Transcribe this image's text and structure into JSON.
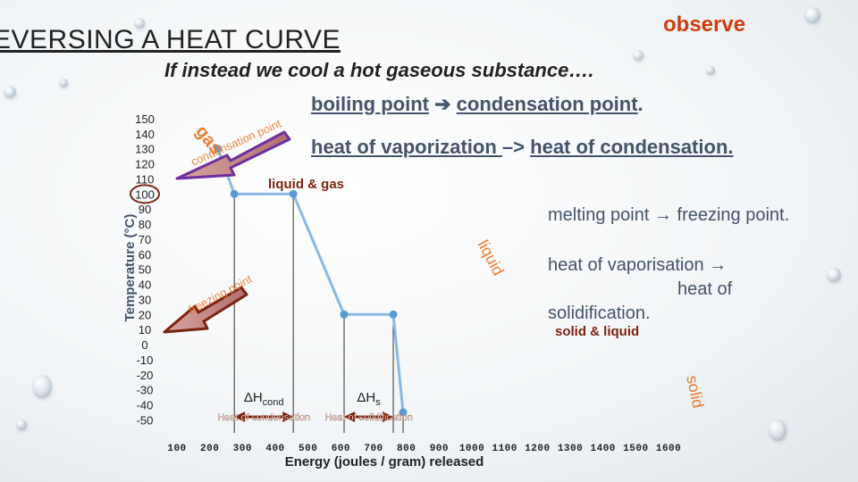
{
  "header": {
    "title": "EVERSING A HEAT CURVE",
    "observe_label": "observe",
    "subtitle": "If instead we cool a hot gaseous substance….",
    "boiling_line": {
      "from": "boiling point",
      "to": "condensation point",
      "end": "."
    },
    "heat_line": {
      "from": "heat of vaporization ",
      "arrow": "–>",
      "to": "heat of condensation",
      "end": "."
    },
    "melting_line": "melting point → freezing point.",
    "vaporisation_line": [
      "heat of vaporisation →",
      "heat of",
      "solidification."
    ]
  },
  "colors": {
    "curve": "#8ab8e4",
    "dot": "#5b9bd5",
    "arrow": "#7030a0",
    "arrow_fill": "#d8a4a0",
    "region_label": "#ed7d31",
    "bracket": "#7b2410",
    "text_dark": "#44546a"
  },
  "chart_data": {
    "type": "line",
    "ylabel": "Temperature (°C)",
    "xlabel": "Energy (joules / gram) released",
    "ylim": [
      -50,
      150
    ],
    "yticks": [
      150,
      140,
      130,
      120,
      110,
      100,
      90,
      80,
      70,
      60,
      50,
      40,
      30,
      20,
      10,
      0,
      -10,
      -20,
      -30,
      -40,
      -50
    ],
    "y_highlight": "100",
    "xticks": [
      "100",
      "200",
      "300",
      "400",
      "500",
      "600",
      "700",
      "800",
      "900",
      "1000",
      "1100",
      "1200",
      "1300",
      "1400",
      "1500",
      "1600"
    ],
    "series": [
      {
        "points": [
          {
            "x": 225,
            "y": 130
          },
          {
            "x": 275,
            "y": 100
          },
          {
            "x": 455,
            "y": 100
          },
          {
            "x": 610,
            "y": 20
          },
          {
            "x": 760,
            "y": 20
          },
          {
            "x": 790,
            "y": -45
          }
        ]
      }
    ],
    "region_labels": [
      "gas",
      "liquid & gas",
      "liquid",
      "solid & liquid",
      "solid"
    ],
    "arrow_labels": [
      "condensation point",
      "freezing point"
    ],
    "brackets": [
      {
        "symbol": "ΔH",
        "subscript": "cond",
        "caption": "Heat of condensation"
      },
      {
        "symbol": "ΔH",
        "subscript": "s",
        "caption": "Heat of solidification"
      }
    ]
  }
}
